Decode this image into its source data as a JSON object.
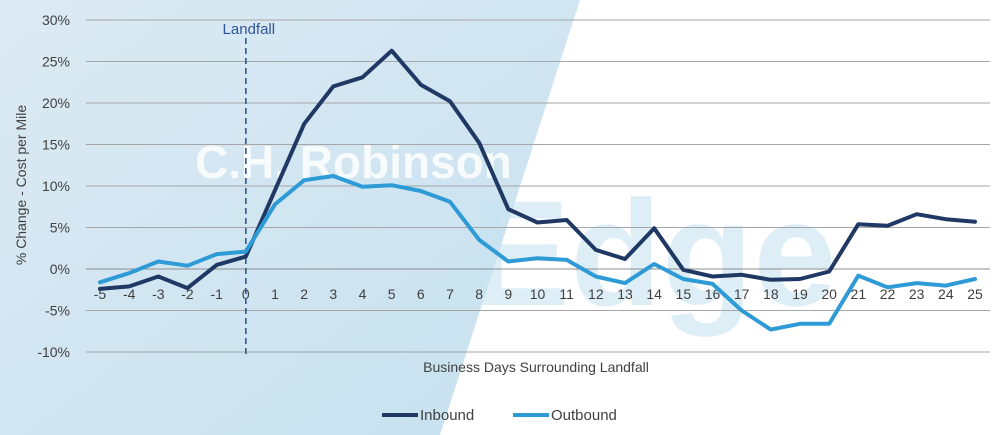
{
  "chart_data": {
    "type": "line",
    "title": "",
    "xlabel": "Business Days Surrounding Landfall",
    "ylabel": "% Change - Cost per Mile",
    "ylim": [
      -10,
      30
    ],
    "yticks": [
      -10,
      -5,
      0,
      5,
      10,
      15,
      20,
      25,
      30
    ],
    "yticklabels": [
      "-10%",
      "-5%",
      "0%",
      "5%",
      "10%",
      "15%",
      "20%",
      "25%",
      "30%"
    ],
    "x": [
      -5,
      -4,
      -3,
      -2,
      -1,
      0,
      1,
      2,
      3,
      4,
      5,
      6,
      7,
      8,
      9,
      10,
      11,
      12,
      13,
      14,
      15,
      16,
      17,
      18,
      19,
      20,
      21,
      22,
      23,
      24,
      25
    ],
    "grid": true,
    "legend": "bottom",
    "annotation": {
      "label": "Landfall",
      "x": 0
    },
    "series": [
      {
        "name": "Inbound",
        "color": "#1f3864",
        "values": [
          -2.4,
          -2.1,
          -0.9,
          -2.3,
          0.5,
          1.5,
          9.5,
          17.5,
          22.0,
          23.1,
          26.3,
          22.2,
          20.2,
          15.2,
          7.2,
          5.6,
          5.9,
          2.3,
          1.2,
          4.9,
          -0.1,
          -0.9,
          -0.7,
          -1.3,
          -1.2,
          -0.3,
          5.4,
          5.2,
          6.6,
          6.0,
          5.7
        ]
      },
      {
        "name": "Outbound",
        "color": "#2e9bd6",
        "values": [
          -1.6,
          -0.5,
          0.9,
          0.4,
          1.8,
          2.1,
          7.8,
          10.7,
          11.2,
          9.9,
          10.1,
          9.4,
          8.1,
          3.5,
          0.9,
          1.3,
          1.1,
          -0.9,
          -1.7,
          0.6,
          -1.2,
          -1.8,
          -5.0,
          -7.3,
          -6.6,
          -6.6,
          -0.8,
          -2.2,
          -1.7,
          -2.0,
          -1.2
        ]
      }
    ]
  },
  "watermark": {
    "brand": "C.H. Robinson",
    "word": "Edge"
  }
}
